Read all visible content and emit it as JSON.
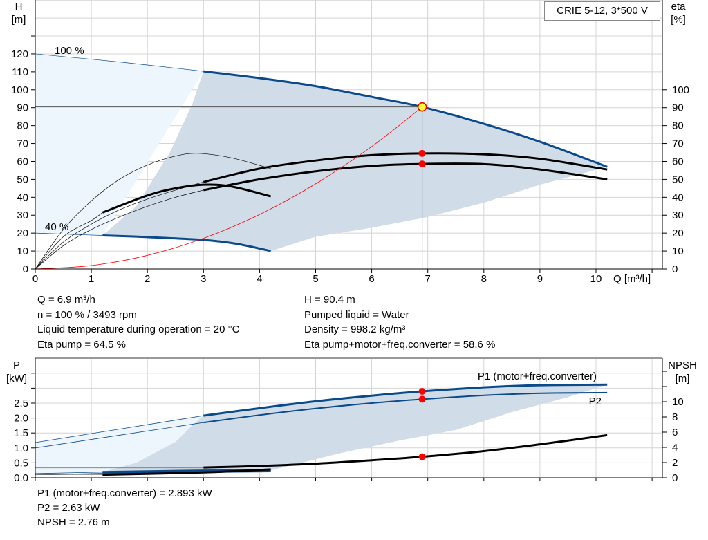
{
  "title": "CRIE 5-12, 3*500 V",
  "colors": {
    "blue": "#0a4a8a",
    "red": "#ff0000",
    "shade_gray": "#d0dce8",
    "shade_light": "#eef6fd",
    "grid": "#d4d4d4"
  },
  "chart_data": [
    {
      "type": "line",
      "name_left_axis": "H\n[m]",
      "ylabel": "H [m]",
      "ylabel_lines": [
        "H",
        "[m]"
      ],
      "y2label_lines": [
        "eta",
        "[%]"
      ],
      "xlabel": "Q [m³/h]",
      "xlim": [
        0,
        11.1
      ],
      "ylim": [
        0,
        150
      ],
      "y2lim": [
        0,
        150
      ],
      "xticks": [
        0,
        1,
        2,
        3,
        4,
        5,
        6,
        7,
        8,
        9,
        10
      ],
      "yticks": [
        0,
        10,
        20,
        30,
        40,
        50,
        60,
        70,
        80,
        90,
        100,
        110,
        120
      ],
      "y2ticks": [
        0,
        10,
        20,
        30,
        40,
        50,
        60,
        70,
        80,
        90,
        100
      ],
      "grid": true,
      "annotations": [
        {
          "text": "100 %",
          "at": [
            0.35,
            122
          ]
        },
        {
          "text": "40 %",
          "at": [
            0.18,
            22
          ]
        }
      ],
      "operating_point": {
        "Q": 6.9,
        "H": 90.4
      },
      "series": [
        {
          "id": "H-100",
          "color": "#0a4a8a",
          "thin": [
            [
              0,
              120
            ],
            [
              1.5,
              115.5
            ],
            [
              3,
              110.3
            ]
          ],
          "thick": [
            [
              3,
              110.3
            ],
            [
              4,
              106.5
            ],
            [
              5,
              102
            ],
            [
              6,
              96
            ],
            [
              6.9,
              90.4
            ],
            [
              8,
              81
            ],
            [
              9,
              71
            ],
            [
              10.2,
              57
            ]
          ]
        },
        {
          "id": "H-40",
          "color": "#0a4a8a",
          "thin": [
            [
              0,
              20
            ],
            [
              1.2,
              18.7
            ]
          ],
          "thick": [
            [
              1.2,
              18.7
            ],
            [
              2,
              17.8
            ],
            [
              3,
              16.2
            ],
            [
              3.6,
              14
            ],
            [
              4.2,
              10
            ]
          ]
        },
        {
          "id": "eta-pump-100",
          "color": "#000000",
          "thin": [
            [
              0,
              0
            ],
            [
              0.5,
              15
            ],
            [
              1,
              25
            ],
            [
              1.5,
              33
            ],
            [
              2,
              39
            ],
            [
              2.5,
              44
            ],
            [
              3,
              48.5
            ]
          ],
          "thick": [
            [
              3,
              48.5
            ],
            [
              4,
              56
            ],
            [
              5,
              60.5
            ],
            [
              6,
              63.5
            ],
            [
              6.9,
              64.5
            ],
            [
              8,
              64
            ],
            [
              9,
              61.5
            ],
            [
              10.2,
              55.5
            ]
          ]
        },
        {
          "id": "eta-total-100",
          "color": "#000000",
          "thin": [
            [
              0,
              0
            ],
            [
              0.5,
              13
            ],
            [
              1,
              22
            ],
            [
              1.5,
              29
            ],
            [
              2,
              35
            ],
            [
              2.5,
              40
            ],
            [
              3,
              44
            ]
          ],
          "thick": [
            [
              3,
              44
            ],
            [
              4,
              50
            ],
            [
              5,
              54.5
            ],
            [
              6,
              57.5
            ],
            [
              6.9,
              58.6
            ],
            [
              8,
              58.5
            ],
            [
              9,
              55.5
            ],
            [
              10.2,
              50
            ]
          ]
        },
        {
          "id": "eta-pump-40",
          "color": "#000000",
          "thin": [
            [
              0,
              0
            ],
            [
              0.5,
              22
            ],
            [
              1,
              38
            ],
            [
              1.5,
              50
            ],
            [
              2,
              58
            ],
            [
              2.5,
              63
            ],
            [
              2.9,
              64.5
            ],
            [
              3.5,
              62
            ],
            [
              4.2,
              56
            ]
          ],
          "thick": []
        },
        {
          "id": "eta-total-40",
          "color": "#000000",
          "thin": [
            [
              0,
              0
            ],
            [
              0.5,
              18
            ],
            [
              1,
              27
            ],
            [
              1.2,
              31.5
            ]
          ],
          "thick": [
            [
              1.2,
              31.5
            ],
            [
              2,
              41
            ],
            [
              2.5,
              45
            ],
            [
              3,
              47
            ],
            [
              3.5,
              46
            ],
            [
              4.2,
              40.5
            ]
          ]
        },
        {
          "id": "system-curve",
          "color": "#ff0000",
          "thin": [
            [
              0,
              0
            ],
            [
              1,
              1.9
            ],
            [
              2,
              7.6
            ],
            [
              3,
              17.1
            ],
            [
              4,
              30.4
            ],
            [
              5,
              47.5
            ],
            [
              6,
              68.3
            ],
            [
              6.9,
              90.4
            ]
          ],
          "thick": []
        }
      ],
      "markers": [
        {
          "Q": 6.9,
          "H": 90.4,
          "style": "yellow-ring"
        },
        {
          "Q": 6.9,
          "eta": 64.5
        },
        {
          "Q": 6.9,
          "eta": 58.6
        }
      ]
    },
    {
      "type": "line",
      "ylabel_lines": [
        "P",
        "[kW]"
      ],
      "y2label_lines": [
        "NPSH",
        "[m]"
      ],
      "xlim": [
        0,
        11.1
      ],
      "ylim": [
        0,
        4
      ],
      "y2lim": [
        0,
        16
      ],
      "yticks": [
        0.0,
        0.5,
        1.0,
        1.5,
        2.0,
        2.5
      ],
      "yticklabels": [
        "0.0",
        "0.5",
        "1.0",
        "1.5",
        "2.0",
        "2.5"
      ],
      "y2ticks": [
        0,
        2,
        4,
        6,
        8,
        10
      ],
      "grid": true,
      "series_labels": [
        {
          "text": "P1 (motor+freq.converter)",
          "color": "#0a4a8a"
        },
        {
          "text": "P2",
          "color": "#0a4a8a"
        }
      ],
      "series": [
        {
          "id": "P1-100",
          "axis": "P",
          "color": "#0a4a8a",
          "thin": [
            [
              0,
              1.18
            ],
            [
              3,
              2.08
            ]
          ],
          "thick": [
            [
              3,
              2.08
            ],
            [
              4,
              2.33
            ],
            [
              5,
              2.56
            ],
            [
              6,
              2.75
            ],
            [
              6.9,
              2.893
            ],
            [
              8,
              3.03
            ],
            [
              9,
              3.1
            ],
            [
              10.2,
              3.12
            ]
          ]
        },
        {
          "id": "P2-100",
          "axis": "P",
          "color": "#0a4a8a",
          "thin": [
            [
              0,
              1.0
            ],
            [
              3,
              1.85
            ]
          ],
          "thick": [
            [
              3,
              1.85
            ],
            [
              4,
              2.1
            ],
            [
              5,
              2.32
            ],
            [
              6,
              2.5
            ],
            [
              6.9,
              2.63
            ],
            [
              8,
              2.76
            ],
            [
              9,
              2.83
            ],
            [
              10.2,
              2.85
            ]
          ]
        },
        {
          "id": "P1-40",
          "axis": "P",
          "color": "#0a4a8a",
          "thin": [
            [
              0,
              0.14
            ],
            [
              1.2,
              0.19
            ]
          ],
          "thick": [
            [
              1.2,
              0.19
            ],
            [
              3,
              0.24
            ],
            [
              4.2,
              0.25
            ]
          ]
        },
        {
          "id": "P2-40",
          "axis": "P",
          "color": "#0a4a8a",
          "thin": [
            [
              0,
              0.1
            ],
            [
              1.2,
              0.15
            ]
          ],
          "thick": [
            [
              1.2,
              0.15
            ],
            [
              3,
              0.2
            ],
            [
              4.2,
              0.22
            ]
          ]
        },
        {
          "id": "NPSH-100",
          "axis": "NPSH",
          "color": "#000000",
          "thin": [
            [
              0,
              1.3
            ],
            [
              3,
              1.3
            ]
          ],
          "thick": [
            [
              3,
              1.35
            ],
            [
              4,
              1.55
            ],
            [
              5,
              1.85
            ],
            [
              6,
              2.3
            ],
            [
              6.9,
              2.76
            ],
            [
              8,
              3.5
            ],
            [
              9,
              4.4
            ],
            [
              10.2,
              5.6
            ]
          ]
        },
        {
          "id": "NPSH-40",
          "axis": "NPSH",
          "color": "#000000",
          "thin": [
            [
              0,
              0.4
            ],
            [
              1.2,
              0.4
            ]
          ],
          "thick": [
            [
              1.2,
              0.4
            ],
            [
              3,
              0.7
            ],
            [
              4.2,
              1.1
            ]
          ]
        }
      ],
      "markers": [
        {
          "Q": 6.9,
          "P": 2.893
        },
        {
          "Q": 6.9,
          "P": 2.63
        },
        {
          "Q": 6.9,
          "NPSH": 2.76
        }
      ]
    }
  ],
  "readout_top_left": [
    "Q = 6.9 m³/h",
    "n = 100 % / 3493 rpm",
    "Liquid temperature during operation = 20 °C",
    "Eta pump = 64.5 %"
  ],
  "readout_top_right": [
    "H = 90.4 m",
    "Pumped liquid = Water",
    "Density = 998.2 kg/m³",
    "Eta pump+motor+freq.converter = 58.6 %"
  ],
  "readout_bottom": [
    "P1 (motor+freq.converter) = 2.893 kW",
    "P2 = 2.63 kW",
    "NPSH = 2.76 m"
  ]
}
